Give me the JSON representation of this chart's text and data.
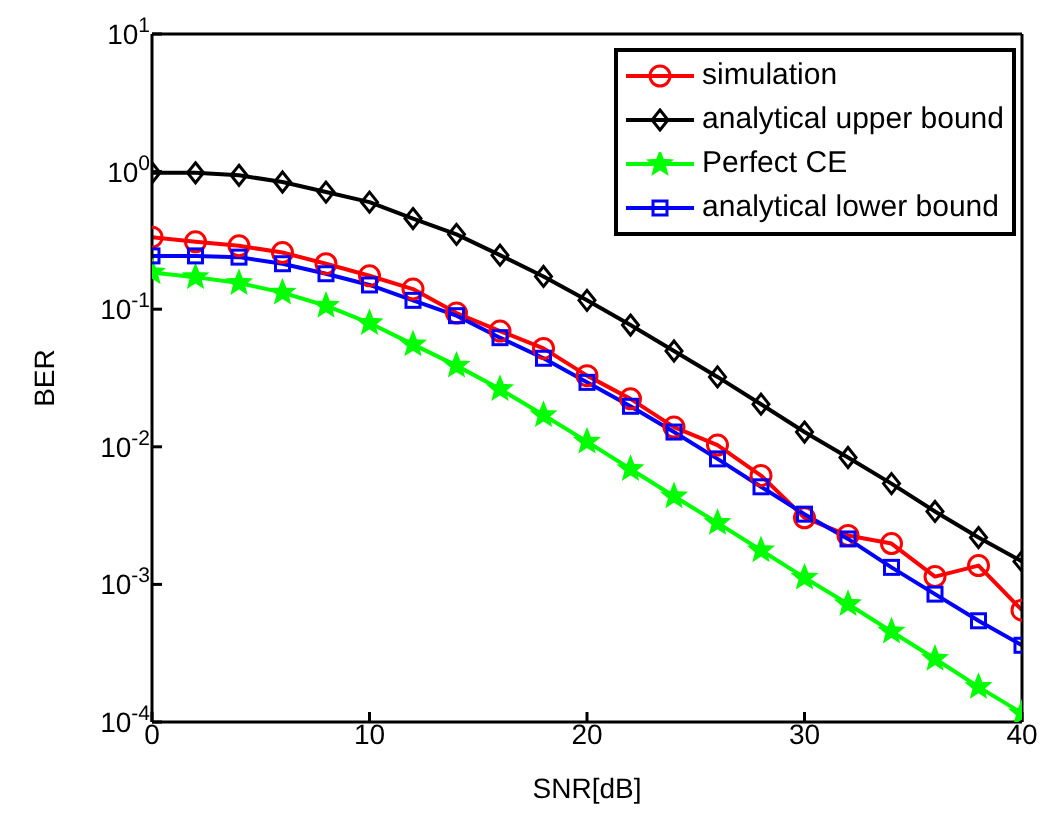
{
  "chart_data": {
    "type": "line",
    "xlabel": "SNR[dB]",
    "ylabel": "BER",
    "log": "y",
    "legend": "top right",
    "line_style": "solid",
    "x": [
      0,
      2,
      4,
      6,
      8,
      10,
      12,
      14,
      16,
      18,
      20,
      22,
      24,
      26,
      28,
      30,
      32,
      34,
      36,
      38,
      40
    ],
    "xlim": [
      0,
      40
    ],
    "xticks": [
      0,
      10,
      20,
      30,
      40
    ],
    "ylim": [
      0.0001,
      10
    ],
    "yticks": [
      {
        "value": 0.0001,
        "label": "10$^{-4}$"
      },
      {
        "value": 0.001,
        "label": "10$^{-3}$"
      },
      {
        "value": 0.01,
        "label": "10$^{-2}$"
      },
      {
        "value": 0.1,
        "label": "10$^{-1}$"
      },
      {
        "value": 1,
        "label": "10$^{0}$"
      },
      {
        "value": 10,
        "label": "10$^{1}$"
      }
    ],
    "series": [
      {
        "name": "simulation",
        "color": "#ff0000",
        "marker": "circle",
        "values": [
          0.334,
          0.309,
          0.289,
          0.258,
          0.214,
          0.175,
          0.14,
          0.0937,
          0.0694,
          0.0519,
          0.0329,
          0.0223,
          0.0139,
          0.0103,
          0.00618,
          0.00305,
          0.00227,
          0.00198,
          0.00114,
          0.00137,
          0.00065
        ]
      },
      {
        "name": "analytical upper bound",
        "color": "#000000",
        "marker": "diamond",
        "values": [
          0.98,
          0.98,
          0.94,
          0.84,
          0.71,
          0.6,
          0.456,
          0.35,
          0.247,
          0.173,
          0.116,
          0.0767,
          0.0497,
          0.0322,
          0.0204,
          0.0128,
          0.00836,
          0.0054,
          0.00339,
          0.00219,
          0.00147
        ]
      },
      {
        "name": "Perfect CE",
        "color": "#00ff00",
        "marker": "star",
        "values": [
          0.185,
          0.171,
          0.155,
          0.132,
          0.106,
          0.0793,
          0.0555,
          0.0389,
          0.0263,
          0.017,
          0.0109,
          0.0069,
          0.00437,
          0.0028,
          0.00177,
          0.00112,
          0.00072,
          0.000455,
          0.000288,
          0.00018,
          0.000116
        ]
      },
      {
        "name": "analytical lower bound",
        "color": "#0000ff",
        "marker": "square",
        "values": [
          0.244,
          0.244,
          0.239,
          0.214,
          0.181,
          0.15,
          0.116,
          0.0897,
          0.0621,
          0.044,
          0.0294,
          0.0197,
          0.0128,
          0.00817,
          0.00512,
          0.00324,
          0.00214,
          0.00133,
          0.00085,
          0.000544,
          0.000361
        ]
      }
    ]
  }
}
